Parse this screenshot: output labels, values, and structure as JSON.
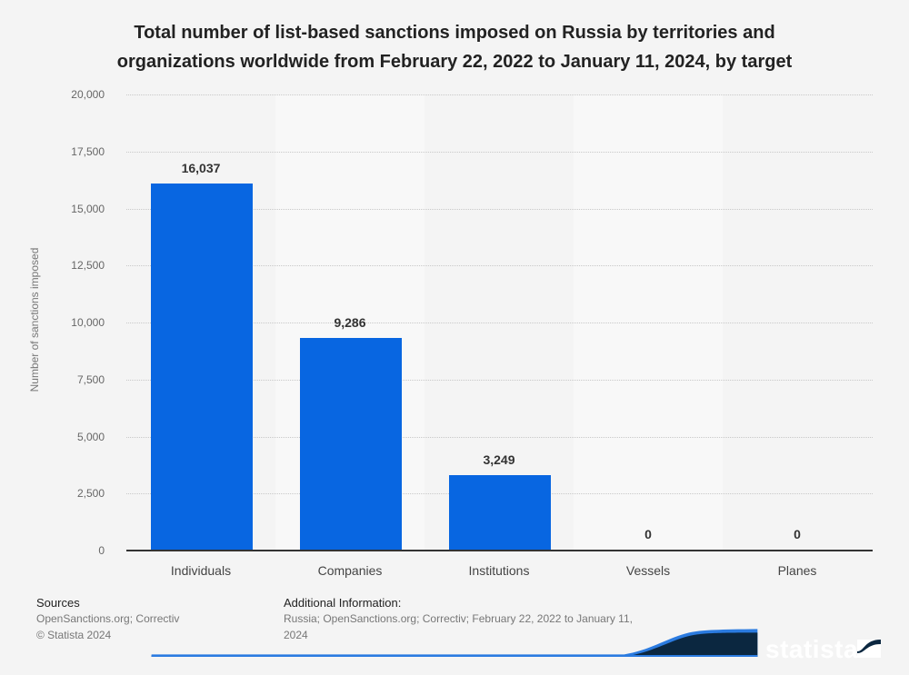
{
  "title": "Total number of list-based sanctions imposed on Russia by territories and organizations worldwide from February 22, 2022 to January 11, 2024, by target",
  "title_lines": [
    "Total number of list-based sanctions imposed on Russia by territories and",
    "organizations worldwide from February 22, 2022 to January 11, 2024, by target"
  ],
  "y_axis": {
    "label": "Number of sanctions imposed",
    "ticks": [
      "20,000",
      "17,500",
      "15,000",
      "12,500",
      "10,000",
      "7,500",
      "5,000",
      "2,500",
      "0"
    ]
  },
  "bars": [
    {
      "category": "Individuals",
      "value": 16037,
      "label": "16,037"
    },
    {
      "category": "Companies",
      "value": 9286,
      "label": "9,286"
    },
    {
      "category": "Institutions",
      "value": 3249,
      "label": "3,249"
    },
    {
      "category": "Vessels",
      "value": 0,
      "label": "0"
    },
    {
      "category": "Planes",
      "value": 0,
      "label": "0"
    }
  ],
  "colors": {
    "bar": "#0866e1",
    "brand_dark": "#0b2740",
    "brand_blue": "#2b7be0"
  },
  "footer": {
    "sources_heading": "Sources",
    "sources_text": "OpenSanctions.org; Correctiv",
    "copyright": "© Statista 2024",
    "additional_heading": "Additional Information:",
    "additional_line1": "Russia; OpenSanctions.org; Correctiv; February 22, 2022 to January 11,",
    "additional_line2": "2024"
  },
  "brand": {
    "logo_text": "statista"
  },
  "chart_data": {
    "type": "bar",
    "title": "Total number of list-based sanctions imposed on Russia by territories and organizations worldwide from February 22, 2022 to January 11, 2024, by target",
    "categories": [
      "Individuals",
      "Companies",
      "Institutions",
      "Vessels",
      "Planes"
    ],
    "values": [
      16037,
      9286,
      3249,
      0,
      0
    ],
    "xlabel": "",
    "ylabel": "Number of sanctions imposed",
    "ylim": [
      0,
      20000
    ],
    "yticks": [
      0,
      2500,
      5000,
      7500,
      10000,
      12500,
      15000,
      17500,
      20000
    ],
    "grid": true,
    "legend": null
  }
}
